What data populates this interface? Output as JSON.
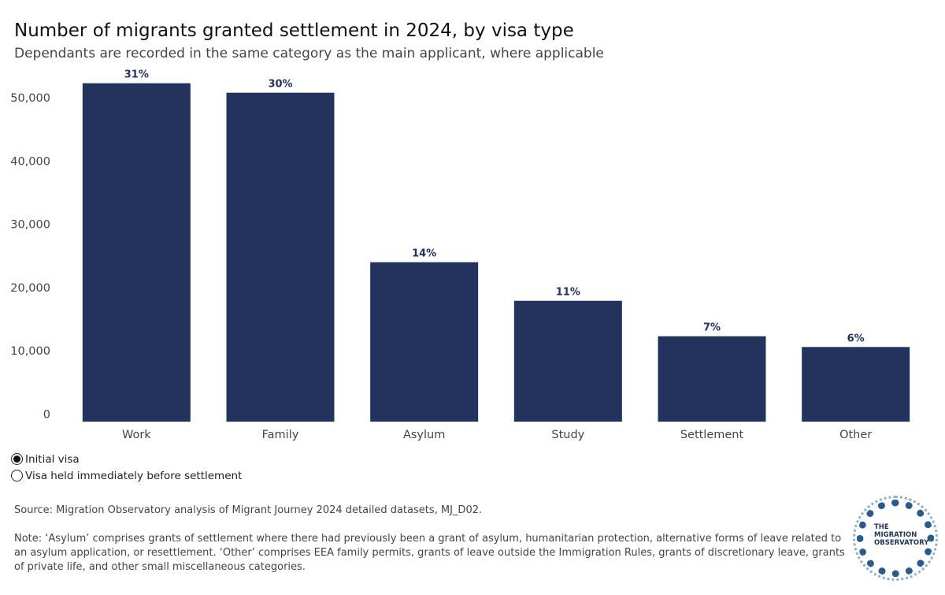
{
  "header": {
    "title": "Number of migrants granted settlement in 2024, by visa type",
    "subtitle": "Dependants are recorded in the same category as the main applicant, where applicable"
  },
  "chart_data": {
    "type": "bar",
    "title": "Number of migrants granted settlement in 2024, by visa type",
    "subtitle": "Dependants are recorded in the same category as the main applicant, where applicable",
    "categories": [
      "Work",
      "Family",
      "Asylum",
      "Study",
      "Settlement",
      "Other"
    ],
    "values": [
      52300,
      50800,
      24000,
      17900,
      12300,
      10600
    ],
    "data_labels": [
      "31%",
      "30%",
      "14%",
      "11%",
      "7%",
      "6%"
    ],
    "ylim": [
      -1200,
      53000
    ],
    "yticks": [
      0,
      10000,
      20000,
      30000,
      40000,
      50000
    ],
    "ytick_labels": [
      "0",
      "10,000",
      "20,000",
      "30,000",
      "40,000",
      "50,000"
    ],
    "grid": false,
    "colors": {
      "bar": "#24335e",
      "label": "#24335e"
    }
  },
  "controls": {
    "options": [
      {
        "label": "Initial visa",
        "selected": true
      },
      {
        "label": "Visa held immediately before settlement",
        "selected": false
      }
    ]
  },
  "footer": {
    "source": "Source: Migration Observatory analysis of Migrant Journey 2024 detailed datasets, MJ_D02.",
    "note": "Note: ‘Asylum’ comprises grants of settlement where there had previously been a grant of asylum, humanitarian protection, alternative forms of leave related to an asylum application, or resettlement. ‘Other’ comprises EEA family permits, grants of leave outside the Immigration Rules, grants of discretionary leave, grants of private life, and other small miscellaneous categories."
  },
  "logo": {
    "text": "THE MIGRATION OBSERVATORY",
    "icon": "migration-observatory-logo-icon"
  }
}
